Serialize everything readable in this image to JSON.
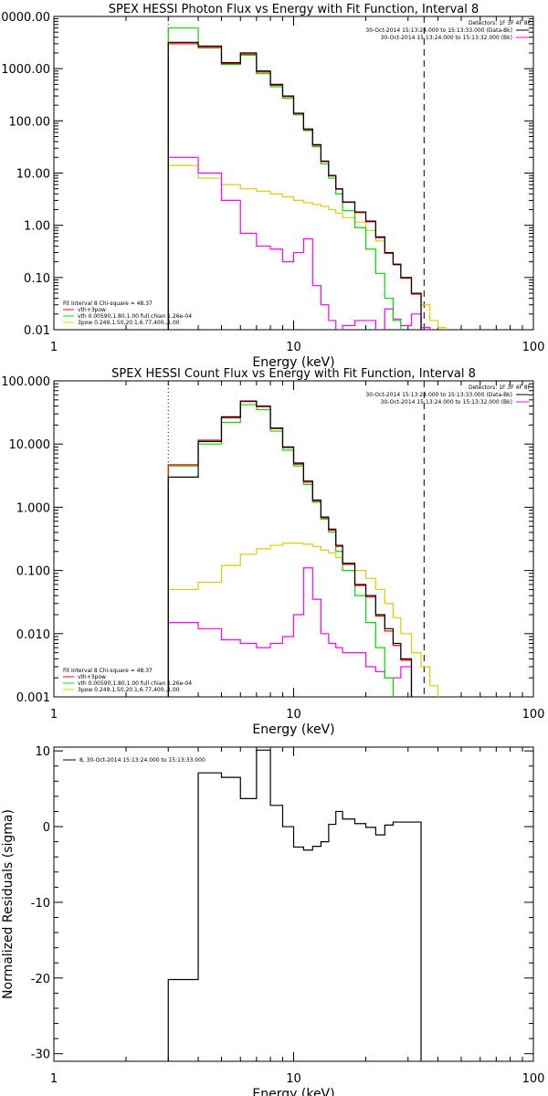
{
  "chart_data": [
    {
      "type": "line",
      "step": true,
      "title": "SPEX HESSI Photon Flux vs Energy with Fit Function, Interval 8",
      "xlabel": "Energy (keV)",
      "ylabel": "",
      "xscale": "log",
      "yscale": "log",
      "xlim": [
        1,
        100
      ],
      "ylim": [
        0.01,
        10000
      ],
      "x_ticks": [
        1,
        10,
        100
      ],
      "x_tick_labels": [
        "1",
        "10",
        "100"
      ],
      "y_ticks": [
        0.01,
        0.1,
        1,
        10,
        100,
        1000,
        10000
      ],
      "y_tick_labels": [
        "0.01",
        "0.10",
        "1.00",
        "10.00",
        "100.00",
        "1000.00",
        "10000.00"
      ],
      "vlines": [
        {
          "x": 3.0,
          "style": "dotted"
        },
        {
          "x": 35.0,
          "style": "dashed"
        }
      ],
      "legend_top": {
        "header": "Detectors: 1F 3F 4F 8F",
        "entries": [
          {
            "text": "30-Oct-2014 15:13:24.000 to 15:13:33.000 (Data-Bk)",
            "color": "#000000"
          },
          {
            "text": "30-Oct-2014 15:13:24.000 to 15:13:32.000 (Bk)",
            "color": "#ff00ff"
          }
        ]
      },
      "legend_bottom": {
        "header": "Fit Interval 8   Chi-square = 48.37",
        "entries": [
          {
            "text": "vth+3pow",
            "color": "#ff0000"
          },
          {
            "text": "vth 0.00590,1.80,1.00  full chian 1.26e-04",
            "color": "#00dd00"
          },
          {
            "text": "3pow 0.249,1.50,20.1,6.77,400.,1.00",
            "color": "#ddcc00"
          }
        ]
      },
      "bin_edges": [
        3.0,
        4.0,
        5.0,
        6.0,
        7.0,
        8.0,
        9.0,
        10.0,
        11.0,
        12.0,
        13.0,
        14.0,
        15.0,
        16.0,
        18.0,
        20.0,
        22.0,
        24.0,
        26.0,
        28.0,
        31.0,
        34.0,
        37.0,
        40.0,
        43.0
      ],
      "series": [
        {
          "color": "#000000",
          "values": [
            3200,
            2700,
            1300,
            2000,
            900,
            500,
            300,
            140,
            70,
            35,
            17,
            9,
            5,
            2.8,
            1.8,
            1.2,
            0.6,
            0.3,
            0.18,
            0.1,
            0.05
          ]
        },
        {
          "color": "#ff0000",
          "values": [
            3000,
            2550,
            1250,
            1900,
            860,
            480,
            290,
            137,
            68,
            34,
            16.5,
            8.8,
            4.9,
            2.75,
            1.75,
            1.17,
            0.58,
            0.29,
            0.175,
            0.097,
            0.048
          ]
        },
        {
          "color": "#00dd00",
          "values": [
            6000,
            2500,
            1200,
            1800,
            800,
            450,
            270,
            130,
            65,
            32,
            15,
            8,
            4,
            1.9,
            0.9,
            0.35,
            0.12,
            0.04,
            0.015,
            0.006
          ]
        },
        {
          "color": "#ddcc00",
          "values": [
            14,
            8,
            6,
            5,
            4.5,
            4,
            3.5,
            3,
            2.7,
            2.5,
            2.3,
            2,
            1.7,
            1.4,
            1.15,
            0.8,
            0.5,
            0.3,
            0.18,
            0.1,
            0.05,
            0.03,
            0.015,
            0.011
          ]
        },
        {
          "color": "#ff00ff",
          "values": [
            20,
            10,
            3,
            0.7,
            0.4,
            0.35,
            0.2,
            0.3,
            0.55,
            0.07,
            0.03,
            0.015,
            0.009,
            0.012,
            0.015,
            0.015,
            0.006,
            0.025,
            0.016,
            0.012,
            0.02,
            0.011
          ]
        }
      ]
    },
    {
      "type": "line",
      "step": true,
      "title": "SPEX HESSI Count Flux vs Energy with Fit Function, Interval 8",
      "xlabel": "Energy (keV)",
      "ylabel": "",
      "xscale": "log",
      "yscale": "log",
      "xlim": [
        1,
        100
      ],
      "ylim": [
        0.001,
        100
      ],
      "x_ticks": [
        1,
        10,
        100
      ],
      "x_tick_labels": [
        "1",
        "10",
        "100"
      ],
      "y_ticks": [
        0.001,
        0.01,
        0.1,
        1,
        10,
        100
      ],
      "y_tick_labels": [
        "0.001",
        "0.010",
        "0.100",
        "1.000",
        "10.000",
        "100.000"
      ],
      "vlines": [
        {
          "x": 3.0,
          "style": "dotted"
        },
        {
          "x": 35.0,
          "style": "dashed"
        }
      ],
      "legend_top": {
        "header": "Detectors: 1F 3F 4F 8F",
        "entries": [
          {
            "text": "30-Oct-2014 15:13:24.000 to 15:13:33.000 (Data-Bk)",
            "color": "#000000"
          },
          {
            "text": "30-Oct-2014 15:13:24.000 to 15:13:32.000 (Bk)",
            "color": "#ff00ff"
          }
        ]
      },
      "legend_bottom": {
        "header": "Fit Interval 8   Chi-square = 48.37",
        "entries": [
          {
            "text": "vth+3pow",
            "color": "#ff0000"
          },
          {
            "text": "vth 0.00590,1.80,1.00  full chian 1.26e-04",
            "color": "#00dd00"
          },
          {
            "text": "3pow 0.249,1.50,20.1,6.77,400.,1.00",
            "color": "#ddcc00"
          }
        ]
      },
      "bin_edges": [
        3.0,
        4.0,
        5.0,
        6.0,
        7.0,
        8.0,
        9.0,
        10.0,
        11.0,
        12.0,
        13.0,
        14.0,
        15.0,
        16.0,
        18.0,
        20.0,
        22.0,
        24.0,
        26.0,
        28.0,
        31.0,
        34.0,
        37.0,
        40.0,
        43.0
      ],
      "series": [
        {
          "color": "#000000",
          "values": [
            3.0,
            11,
            27,
            48,
            40,
            18,
            9,
            5,
            2.6,
            1.3,
            0.7,
            0.45,
            0.25,
            0.13,
            0.06,
            0.04,
            0.02,
            0.012,
            0.007,
            0.004
          ]
        },
        {
          "color": "#ff0000",
          "values": [
            4.7,
            11.5,
            26,
            47,
            39,
            17.5,
            8.8,
            4.8,
            2.5,
            1.25,
            0.68,
            0.43,
            0.24,
            0.125,
            0.058,
            0.038,
            0.019,
            0.011,
            0.0065,
            0.0038
          ]
        },
        {
          "color": "#00dd00",
          "values": [
            4.5,
            10,
            22,
            42,
            35,
            16,
            8,
            4.5,
            2.3,
            1.2,
            0.65,
            0.4,
            0.2,
            0.1,
            0.04,
            0.015,
            0.006,
            0.002,
            0.0008
          ]
        },
        {
          "color": "#ddcc00",
          "values": [
            0.05,
            0.065,
            0.12,
            0.18,
            0.22,
            0.25,
            0.27,
            0.27,
            0.26,
            0.24,
            0.21,
            0.19,
            0.16,
            0.13,
            0.1,
            0.075,
            0.05,
            0.03,
            0.018,
            0.01,
            0.005,
            0.003,
            0.0015,
            0.0008
          ]
        },
        {
          "color": "#ff00ff",
          "values": [
            0.015,
            0.012,
            0.008,
            0.007,
            0.006,
            0.007,
            0.009,
            0.02,
            0.11,
            0.035,
            0.01,
            0.007,
            0.006,
            0.005,
            0.005,
            0.003,
            0.0025,
            0.002,
            0.002,
            0.003,
            0.0008
          ]
        }
      ]
    },
    {
      "type": "line",
      "step": true,
      "title": "",
      "xlabel": "Energy (keV)",
      "ylabel": "Normalized Residuals (sigma)",
      "xscale": "log",
      "yscale": "linear",
      "xlim": [
        1,
        100
      ],
      "ylim": [
        -31,
        10.5
      ],
      "x_ticks": [
        1,
        10,
        100
      ],
      "x_tick_labels": [
        "1",
        "10",
        "100"
      ],
      "y_ticks": [
        10,
        0,
        -10,
        -20,
        -30
      ],
      "y_tick_labels": [
        "10",
        "0",
        "-10",
        "-20",
        "-30"
      ],
      "legend_top": {
        "header": "",
        "entries": [
          {
            "text": "8, 30-Oct-2014 15:13:24.000 to 15:13:33.000",
            "color": "#000000"
          }
        ]
      },
      "bin_edges": [
        3.0,
        4.0,
        5.0,
        6.0,
        7.0,
        8.0,
        9.0,
        10.0,
        11.0,
        12.0,
        13.0,
        14.0,
        15.0,
        16.0,
        18.0,
        20.0,
        22.0,
        24.0,
        26.0,
        28.0,
        31.0,
        34.0
      ],
      "series": [
        {
          "color": "#000000",
          "values": [
            -20.2,
            7.1,
            6.5,
            3.7,
            10.1,
            2.8,
            0.0,
            -2.7,
            -3.1,
            -2.6,
            -2.0,
            0.3,
            2.0,
            1.0,
            0.4,
            -0.1,
            -1.1,
            0.2,
            0.6,
            0.6,
            0.6
          ]
        }
      ]
    }
  ]
}
